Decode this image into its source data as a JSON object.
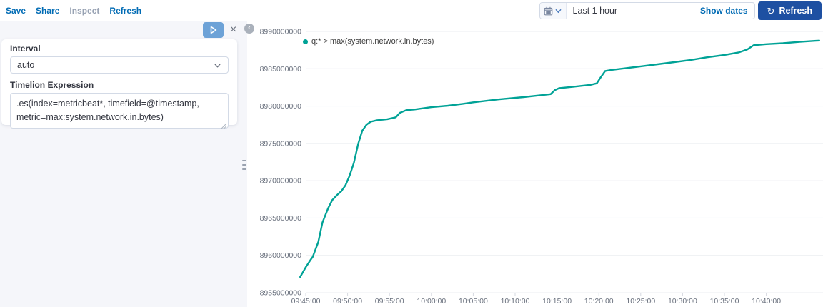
{
  "topbar": {
    "links": [
      {
        "label": "Save",
        "enabled": true
      },
      {
        "label": "Share",
        "enabled": true
      },
      {
        "label": "Inspect",
        "enabled": false
      },
      {
        "label": "Refresh",
        "enabled": true
      }
    ],
    "datepicker": {
      "duration": "Last 1 hour",
      "show_dates_label": "Show dates"
    },
    "refresh_button": {
      "label": "Refresh"
    }
  },
  "editor": {
    "interval_label": "Interval",
    "interval_value": "auto",
    "expression_label": "Timelion Expression",
    "expression_value": ".es(index=metricbeat*, timefield=@timestamp, metric=max:system.network.in.bytes)"
  },
  "icons": {
    "refresh_icon": "↻",
    "close_icon": "×",
    "collapse_icon": "‹"
  },
  "colors": {
    "accent": "#006bb4",
    "primary_button": "#1e50a2",
    "play_button": "#6da2d7",
    "series_teal": "#00a296",
    "gridline": "#ebedf1",
    "axis_text": "#69707d"
  },
  "chart_data": {
    "type": "line",
    "title": "",
    "xlabel": "",
    "ylabel": "",
    "grid": "horizontal",
    "legend": {
      "label": "q:* > max(system.network.in.bytes)",
      "position": "top-left"
    },
    "ylim": [
      8955000000,
      8990000000
    ],
    "y_ticks": [
      "8990000000",
      "8985000000",
      "8980000000",
      "8975000000",
      "8970000000",
      "8965000000",
      "8960000000",
      "8955000000"
    ],
    "x_ticks": [
      "09:45:00",
      "09:50:00",
      "09:55:00",
      "10:00:00",
      "10:05:00",
      "10:10:00",
      "10:15:00",
      "10:20:00",
      "10:25:00",
      "10:30:00",
      "10:35:00",
      "10:40:00"
    ],
    "series": [
      {
        "name": "q:* > max(system.network.in.bytes)",
        "color": "#00a296",
        "points": [
          [
            "09:44:20",
            8957100000
          ],
          [
            "09:45:00",
            8958400000
          ],
          [
            "09:45:35",
            8959400000
          ],
          [
            "09:45:50",
            8959800000
          ],
          [
            "09:46:30",
            8961800000
          ],
          [
            "09:47:00",
            8964400000
          ],
          [
            "09:47:40",
            8966300000
          ],
          [
            "09:48:10",
            8967400000
          ],
          [
            "09:48:45",
            8968100000
          ],
          [
            "09:49:15",
            8968600000
          ],
          [
            "09:49:45",
            8969400000
          ],
          [
            "09:50:15",
            8970700000
          ],
          [
            "09:50:45",
            8972400000
          ],
          [
            "09:51:15",
            8974900000
          ],
          [
            "09:51:45",
            8976700000
          ],
          [
            "09:52:15",
            8977500000
          ],
          [
            "09:52:45",
            8977900000
          ],
          [
            "09:53:30",
            8978100000
          ],
          [
            "09:54:45",
            8978250000
          ],
          [
            "09:55:45",
            8978500000
          ],
          [
            "09:56:15",
            8979100000
          ],
          [
            "09:57:00",
            8979450000
          ],
          [
            "09:58:00",
            8979550000
          ],
          [
            "10:00:00",
            8979850000
          ],
          [
            "10:02:00",
            8980050000
          ],
          [
            "10:03:45",
            8980300000
          ],
          [
            "10:05:00",
            8980500000
          ],
          [
            "10:08:00",
            8980900000
          ],
          [
            "10:11:00",
            8981200000
          ],
          [
            "10:13:00",
            8981450000
          ],
          [
            "10:14:15",
            8981600000
          ],
          [
            "10:14:45",
            8982150000
          ],
          [
            "10:15:15",
            8982400000
          ],
          [
            "10:17:00",
            8982600000
          ],
          [
            "10:19:00",
            8982850000
          ],
          [
            "10:19:45",
            8983050000
          ],
          [
            "10:20:15",
            8983900000
          ],
          [
            "10:20:45",
            8984700000
          ],
          [
            "10:21:30",
            8984850000
          ],
          [
            "10:23:00",
            8985050000
          ],
          [
            "10:25:00",
            8985320000
          ],
          [
            "10:27:00",
            8985600000
          ],
          [
            "10:29:00",
            8985890000
          ],
          [
            "10:31:00",
            8986180000
          ],
          [
            "10:33:00",
            8986550000
          ],
          [
            "10:35:00",
            8986840000
          ],
          [
            "10:36:45",
            8987200000
          ],
          [
            "10:37:45",
            8987600000
          ],
          [
            "10:38:30",
            8988150000
          ],
          [
            "10:40:00",
            8988300000
          ],
          [
            "10:42:00",
            8988420000
          ],
          [
            "10:44:00",
            8988600000
          ],
          [
            "10:46:20",
            8988780000
          ]
        ]
      }
    ]
  }
}
